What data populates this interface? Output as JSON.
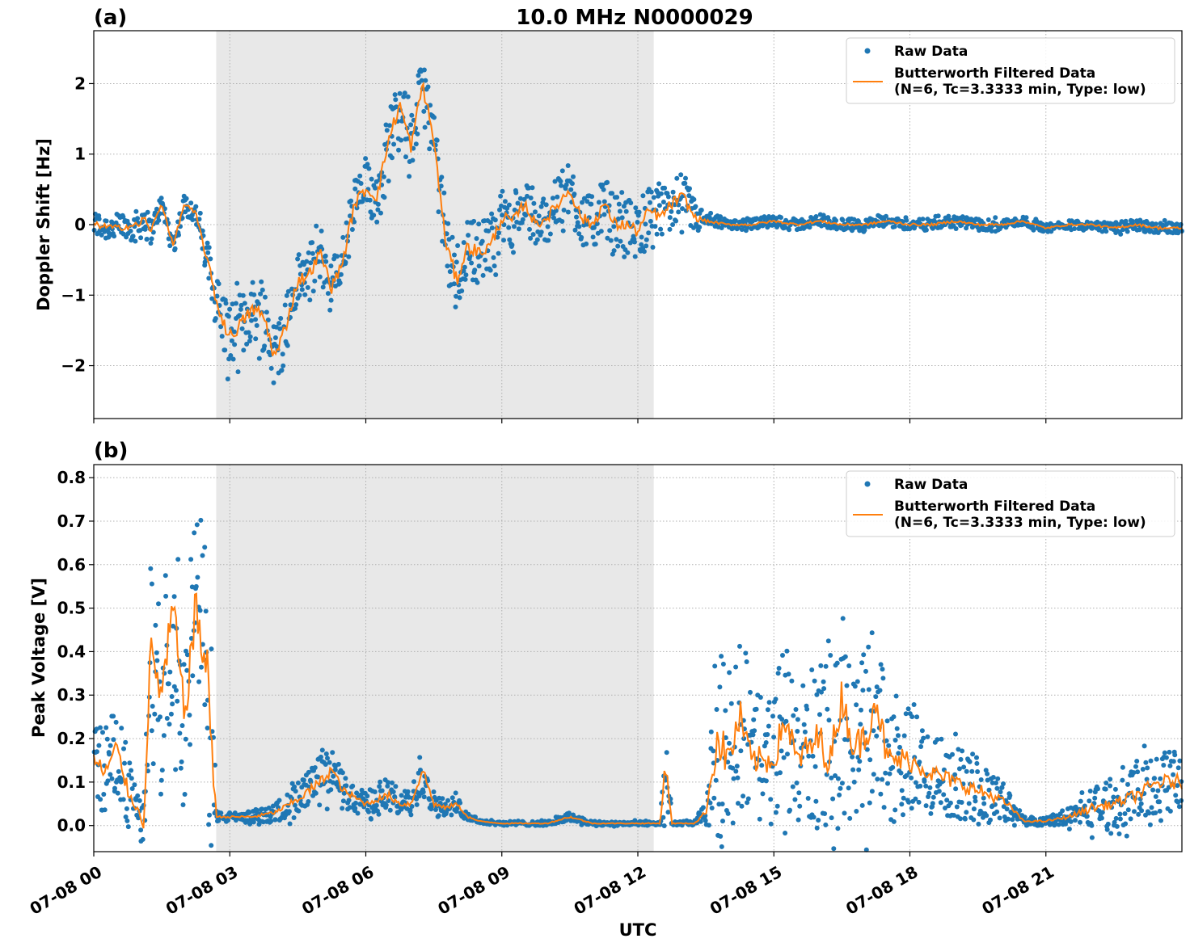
{
  "figure": {
    "title": "10.0 MHz N0000029",
    "xlabel": "UTC",
    "x_tick_labels": [
      "07-08 00",
      "07-08 03",
      "07-08 06",
      "07-08 09",
      "07-08 12",
      "07-08 15",
      "07-08 18",
      "07-08 21"
    ]
  },
  "chart_data": [
    {
      "type": "scatter",
      "panel_label": "(a)",
      "title": "10.0 MHz N0000029",
      "ylabel": "Doppler Shift [Hz]",
      "xlabel": "",
      "x_unit": "hours UTC on 07-08",
      "xlim": [
        0,
        24
      ],
      "ylim": [
        -2.75,
        2.75
      ],
      "y_ticks": [
        -2,
        -1,
        0,
        1,
        2
      ],
      "y_tick_labels": [
        "−2",
        "−1",
        "0",
        "1",
        "2"
      ],
      "grid": true,
      "legend_position": "top-right",
      "shaded_interval": [
        2.7,
        12.35
      ],
      "colors": {
        "raw": "#1f77b4",
        "filtered": "#ff7f0e",
        "shade": "#e8e8e8"
      },
      "series": [
        {
          "name": "Raw Data",
          "style": "markers",
          "x": [
            0,
            0.5,
            1,
            1.1,
            1.25,
            1.5,
            1.75,
            2,
            2.25,
            2.5,
            2.75,
            3,
            3.25,
            3.5,
            3.75,
            4,
            4.25,
            4.5,
            4.75,
            5,
            5.25,
            5.5,
            5.75,
            6,
            6.25,
            6.5,
            6.75,
            7,
            7.25,
            7.5,
            7.75,
            8,
            8.25,
            8.5,
            8.75,
            9,
            9.25,
            9.5,
            9.75,
            10,
            10.25,
            10.5,
            10.75,
            11,
            11.25,
            11.5,
            11.75,
            12,
            12.25,
            12.5,
            12.75,
            13,
            13.25,
            13.5,
            14,
            14.5,
            15,
            15.5,
            16,
            16.5,
            17,
            17.5,
            18,
            18.5,
            19,
            19.5,
            20,
            20.5,
            21,
            21.5,
            22,
            22.5,
            23,
            23.5,
            24
          ],
          "y": [
            0,
            -0.05,
            0,
            0.1,
            -0.1,
            0.3,
            -0.3,
            0.3,
            0.15,
            -0.5,
            -1.2,
            -1.6,
            -1.4,
            -1.2,
            -1.3,
            -1.9,
            -1.4,
            -0.8,
            -0.7,
            -0.4,
            -0.9,
            -0.5,
            0.3,
            0.5,
            0.4,
            1.2,
            1.7,
            1.1,
            2.0,
            1.2,
            -0.2,
            -0.8,
            -0.3,
            -0.4,
            -0.3,
            0.1,
            0.05,
            0.3,
            0.0,
            0.1,
            0.3,
            0.5,
            0.1,
            0.0,
            0.3,
            0.0,
            0.0,
            -0.1,
            0.2,
            0.1,
            0.3,
            0.4,
            0.1,
            0.05,
            0.0,
            0.0,
            0.05,
            0.0,
            0.05,
            0.0,
            0.0,
            0.05,
            0.0,
            0.0,
            0.05,
            0.0,
            0.0,
            0.05,
            -0.05,
            0.0,
            0.0,
            -0.05,
            0.0,
            -0.05,
            -0.05
          ],
          "spread": [
            0.2,
            0.2,
            0.2,
            0.3,
            0.15,
            0.15,
            0.15,
            0.15,
            0.15,
            0.3,
            0.45,
            0.5,
            0.45,
            0.45,
            0.5,
            0.5,
            0.45,
            0.4,
            0.4,
            0.4,
            0.4,
            0.4,
            0.4,
            0.4,
            0.4,
            0.45,
            0.45,
            0.45,
            0.45,
            0.45,
            0.45,
            0.5,
            0.45,
            0.45,
            0.45,
            0.4,
            0.35,
            0.35,
            0.35,
            0.35,
            0.4,
            0.4,
            0.4,
            0.4,
            0.4,
            0.4,
            0.4,
            0.4,
            0.4,
            0.35,
            0.4,
            0.35,
            0.25,
            0.1,
            0.06,
            0.08,
            0.08,
            0.08,
            0.08,
            0.08,
            0.08,
            0.08,
            0.08,
            0.08,
            0.08,
            0.08,
            0.08,
            0.06,
            0.06,
            0.06,
            0.06,
            0.08,
            0.08,
            0.08,
            0.08
          ]
        },
        {
          "name": "Butterworth Filtered Data\n(N=6, Tc=3.3333 min, Type: low)",
          "style": "line",
          "x": [
            0,
            0.5,
            1,
            1.1,
            1.25,
            1.5,
            1.75,
            2,
            2.25,
            2.5,
            2.75,
            3,
            3.25,
            3.5,
            3.75,
            4,
            4.25,
            4.5,
            4.75,
            5,
            5.25,
            5.5,
            5.75,
            6,
            6.25,
            6.5,
            6.75,
            7,
            7.25,
            7.5,
            7.75,
            8,
            8.25,
            8.5,
            8.75,
            9,
            9.25,
            9.5,
            9.75,
            10,
            10.25,
            10.5,
            10.75,
            11,
            11.25,
            11.5,
            11.75,
            12,
            12.25,
            12.5,
            12.75,
            13,
            13.25,
            13.5,
            14,
            14.5,
            15,
            15.5,
            16,
            16.5,
            17,
            17.5,
            18,
            18.5,
            19,
            19.5,
            20,
            20.5,
            21,
            21.5,
            22,
            22.5,
            23,
            23.5,
            24
          ],
          "y": [
            0,
            -0.05,
            0,
            0.1,
            -0.1,
            0.3,
            -0.3,
            0.3,
            0.15,
            -0.5,
            -1.2,
            -1.6,
            -1.4,
            -1.2,
            -1.3,
            -1.9,
            -1.4,
            -0.8,
            -0.7,
            -0.4,
            -0.9,
            -0.5,
            0.3,
            0.5,
            0.4,
            1.2,
            1.7,
            1.1,
            2.0,
            1.2,
            -0.2,
            -0.8,
            -0.3,
            -0.4,
            -0.3,
            0.1,
            0.05,
            0.3,
            0.0,
            0.1,
            0.3,
            0.5,
            0.1,
            0.0,
            0.3,
            0.0,
            0.0,
            -0.1,
            0.2,
            0.1,
            0.3,
            0.4,
            0.1,
            0.05,
            0.0,
            0.0,
            0.05,
            0.0,
            0.05,
            0.0,
            0.0,
            0.05,
            0.0,
            0.0,
            0.05,
            0.0,
            0.0,
            0.05,
            -0.05,
            0.0,
            0.0,
            -0.05,
            0.0,
            -0.05,
            -0.05
          ]
        }
      ]
    },
    {
      "type": "scatter",
      "panel_label": "(b)",
      "title": "",
      "ylabel": "Peak Voltage [V]",
      "xlabel": "UTC",
      "x_unit": "hours UTC on 07-08",
      "xlim": [
        0,
        24
      ],
      "ylim": [
        -0.06,
        0.83
      ],
      "y_ticks": [
        0.0,
        0.1,
        0.2,
        0.3,
        0.4,
        0.5,
        0.6,
        0.7,
        0.8
      ],
      "y_tick_labels": [
        "0.0",
        "0.1",
        "0.2",
        "0.3",
        "0.4",
        "0.5",
        "0.6",
        "0.7",
        "0.8"
      ],
      "grid": true,
      "legend_position": "top-right",
      "shaded_interval": [
        2.7,
        12.35
      ],
      "colors": {
        "raw": "#1f77b4",
        "filtered": "#ff7f0e",
        "shade": "#e8e8e8"
      },
      "series": [
        {
          "name": "Raw Data",
          "style": "markers",
          "x": [
            0,
            0.25,
            0.5,
            0.75,
            1.0,
            1.1,
            1.25,
            1.5,
            1.75,
            2.0,
            2.25,
            2.5,
            2.6,
            2.7,
            3,
            3.5,
            4,
            4.5,
            5,
            5.25,
            5.5,
            6,
            6.25,
            6.5,
            6.75,
            7,
            7.25,
            7.5,
            7.75,
            8,
            8.25,
            8.5,
            9,
            10,
            10.5,
            11,
            11.5,
            12,
            12.5,
            12.6,
            12.75,
            13,
            13.25,
            13.5,
            13.75,
            14,
            14.25,
            14.5,
            15,
            15.25,
            15.5,
            16,
            16.25,
            16.5,
            16.75,
            17,
            17.25,
            17.5,
            17.75,
            18,
            18.5,
            19,
            19.5,
            20,
            20.25,
            20.5,
            21,
            21.5,
            22,
            22.5,
            23,
            23.5,
            24
          ],
          "y": [
            0.15,
            0.12,
            0.18,
            0.08,
            0.03,
            0.0,
            0.4,
            0.3,
            0.5,
            0.25,
            0.5,
            0.35,
            0.2,
            0.02,
            0.02,
            0.02,
            0.03,
            0.06,
            0.1,
            0.13,
            0.08,
            0.05,
            0.06,
            0.07,
            0.05,
            0.05,
            0.13,
            0.05,
            0.04,
            0.05,
            0.02,
            0.01,
            0.005,
            0.005,
            0.02,
            0.005,
            0.005,
            0.005,
            0.005,
            0.15,
            0.005,
            0.005,
            0.005,
            0.03,
            0.2,
            0.15,
            0.25,
            0.15,
            0.15,
            0.25,
            0.15,
            0.2,
            0.15,
            0.3,
            0.18,
            0.2,
            0.3,
            0.15,
            0.15,
            0.15,
            0.12,
            0.1,
            0.08,
            0.06,
            0.04,
            0.01,
            0.01,
            0.02,
            0.04,
            0.05,
            0.07,
            0.1,
            0.1
          ],
          "spread": [
            0.1,
            0.1,
            0.1,
            0.08,
            0.03,
            0.05,
            0.2,
            0.2,
            0.25,
            0.2,
            0.25,
            0.3,
            0.3,
            0.01,
            0.01,
            0.015,
            0.02,
            0.04,
            0.06,
            0.06,
            0.04,
            0.03,
            0.03,
            0.04,
            0.03,
            0.03,
            0.06,
            0.03,
            0.02,
            0.02,
            0.01,
            0.005,
            0.005,
            0.005,
            0.01,
            0.005,
            0.005,
            0.005,
            0.005,
            0.12,
            0.005,
            0.005,
            0.005,
            0.03,
            0.25,
            0.2,
            0.2,
            0.15,
            0.15,
            0.2,
            0.15,
            0.2,
            0.2,
            0.2,
            0.15,
            0.2,
            0.2,
            0.15,
            0.15,
            0.12,
            0.1,
            0.08,
            0.08,
            0.05,
            0.03,
            0.01,
            0.01,
            0.02,
            0.05,
            0.05,
            0.07,
            0.08,
            0.08
          ]
        },
        {
          "name": "Butterworth Filtered Data\n(N=6, Tc=3.3333 min, Type: low)",
          "style": "line",
          "x": [
            0,
            0.25,
            0.5,
            0.75,
            1.0,
            1.1,
            1.25,
            1.5,
            1.75,
            2.0,
            2.25,
            2.5,
            2.6,
            2.7,
            3,
            3.5,
            4,
            4.5,
            5,
            5.25,
            5.5,
            6,
            6.25,
            6.5,
            6.75,
            7,
            7.25,
            7.5,
            7.75,
            8,
            8.25,
            8.5,
            9,
            10,
            10.5,
            11,
            11.5,
            12,
            12.5,
            12.6,
            12.75,
            13,
            13.25,
            13.5,
            13.75,
            14,
            14.25,
            14.5,
            15,
            15.25,
            15.5,
            16,
            16.25,
            16.5,
            16.75,
            17,
            17.25,
            17.5,
            17.75,
            18,
            18.5,
            19,
            19.5,
            20,
            20.25,
            20.5,
            21,
            21.5,
            22,
            22.5,
            23,
            23.5,
            24
          ],
          "y": [
            0.15,
            0.12,
            0.18,
            0.08,
            0.03,
            0.0,
            0.4,
            0.3,
            0.5,
            0.25,
            0.5,
            0.35,
            0.2,
            0.02,
            0.02,
            0.02,
            0.03,
            0.06,
            0.1,
            0.13,
            0.08,
            0.05,
            0.06,
            0.07,
            0.05,
            0.05,
            0.13,
            0.05,
            0.04,
            0.05,
            0.02,
            0.01,
            0.005,
            0.005,
            0.02,
            0.005,
            0.005,
            0.005,
            0.005,
            0.15,
            0.005,
            0.005,
            0.005,
            0.03,
            0.2,
            0.15,
            0.25,
            0.15,
            0.15,
            0.25,
            0.15,
            0.2,
            0.15,
            0.3,
            0.18,
            0.2,
            0.3,
            0.15,
            0.15,
            0.15,
            0.12,
            0.1,
            0.08,
            0.06,
            0.04,
            0.01,
            0.01,
            0.02,
            0.04,
            0.05,
            0.07,
            0.1,
            0.1
          ]
        }
      ]
    }
  ]
}
